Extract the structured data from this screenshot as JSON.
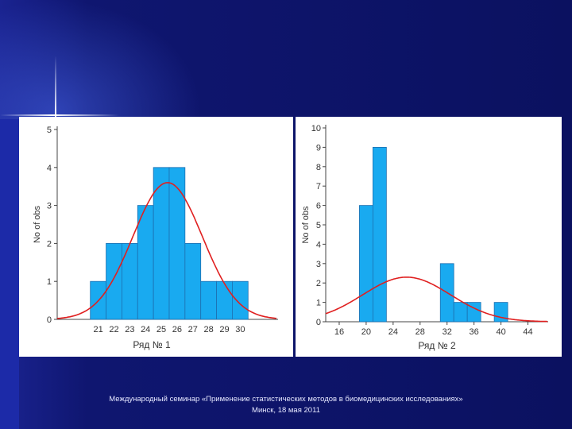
{
  "footer": {
    "line1": "Международный семинар «Применение статистических методов в биомедицинских исследованиях»",
    "line2": "Минск, 18 мая 2011"
  },
  "colors": {
    "bar": "#19aaf0",
    "bar_stroke": "#1d6fb0",
    "curve": "#e02020",
    "axis": "#444444",
    "text": "#333333"
  },
  "chart_data": [
    {
      "type": "bar",
      "title": "",
      "xlabel": "Ряд № 1",
      "ylabel": "No of obs",
      "categories": [
        "21",
        "22",
        "23",
        "24",
        "25",
        "26",
        "27",
        "28",
        "29",
        "30"
      ],
      "values": [
        1,
        2,
        2,
        3,
        4,
        4,
        2,
        1,
        1,
        1
      ],
      "ylim": [
        0,
        5
      ],
      "yticks": [
        "0",
        "1",
        "2",
        "3",
        "4",
        "5"
      ],
      "overlay": {
        "type": "normal-curve",
        "mean": 25.4,
        "sd": 2.2,
        "peak": 3.6
      },
      "xlim": [
        18.4,
        32.4
      ]
    },
    {
      "type": "bar",
      "title": "",
      "xlabel": "Ряд № 2",
      "ylabel": "No of obs",
      "bins": [
        {
          "start": 19,
          "end": 21,
          "value": 6
        },
        {
          "start": 21,
          "end": 23,
          "value": 9
        },
        {
          "start": 31,
          "end": 33,
          "value": 3
        },
        {
          "start": 33,
          "end": 35,
          "value": 1
        },
        {
          "start": 35,
          "end": 37,
          "value": 1
        },
        {
          "start": 39,
          "end": 41,
          "value": 1
        }
      ],
      "xticks": [
        "16",
        "20",
        "24",
        "28",
        "32",
        "36",
        "40",
        "44"
      ],
      "xlim": [
        14,
        47
      ],
      "ylim": [
        0,
        10
      ],
      "yticks": [
        "0",
        "1",
        "2",
        "3",
        "4",
        "5",
        "6",
        "7",
        "8",
        "9",
        "10"
      ],
      "overlay": {
        "type": "normal-curve",
        "mean": 26,
        "sd": 6.5,
        "peak": 2.3
      }
    }
  ]
}
